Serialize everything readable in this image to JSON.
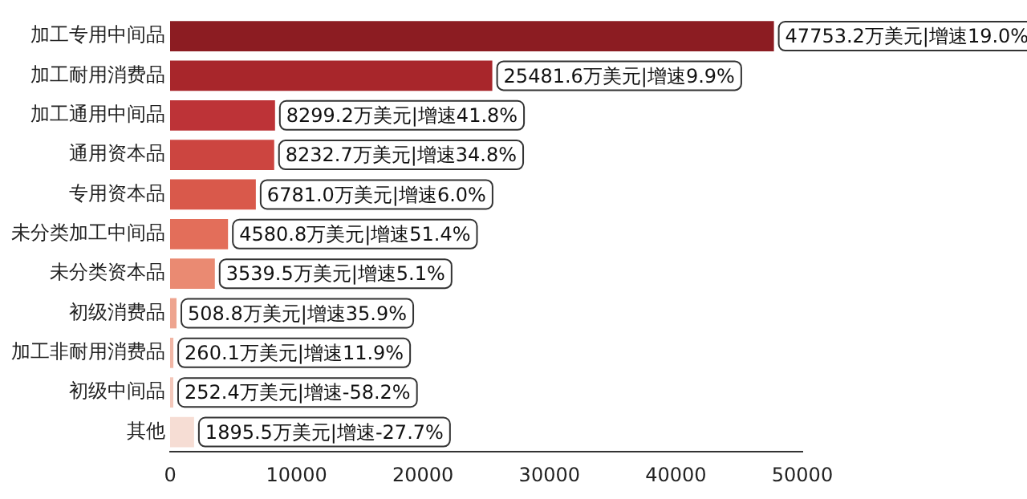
{
  "chart_data": {
    "type": "bar",
    "orientation": "horizontal",
    "categories": [
      "加工专用中间品",
      "加工耐用消费品",
      "加工通用中间品",
      "通用资本品",
      "专用资本品",
      "未分类加工中间品",
      "未分类资本品",
      "初级消费品",
      "加工非耐用消费品",
      "初级中间品",
      "其他"
    ],
    "values": [
      47753.2,
      25481.6,
      8299.2,
      8232.7,
      6781.0,
      4580.8,
      3539.5,
      508.8,
      260.1,
      252.4,
      1895.5
    ],
    "value_labels": [
      "47753.2万美元|增速19.0%",
      "25481.6万美元|增速9.9%",
      "8299.2万美元|增速41.8%",
      "8232.7万美元|增速34.8%",
      "6781.0万美元|增速6.0%",
      "4580.8万美元|增速51.4%",
      "3539.5万美元|增速5.1%",
      "508.8万美元|增速35.9%",
      "260.1万美元|增速11.9%",
      "252.4万美元|增速-58.2%",
      "1895.5万美元|增速-27.7%"
    ],
    "colors": [
      "#8c1c22",
      "#a8262b",
      "#bd3337",
      "#cc4540",
      "#d9594b",
      "#e36e5a",
      "#ea8a72",
      "#eea48f",
      "#f1b6a5",
      "#f3c7ba",
      "#f6ddd4"
    ],
    "xlim": [
      0,
      50000
    ],
    "xticks": [
      0,
      10000,
      20000,
      30000,
      40000,
      50000
    ],
    "grid": false,
    "legend": false
  }
}
